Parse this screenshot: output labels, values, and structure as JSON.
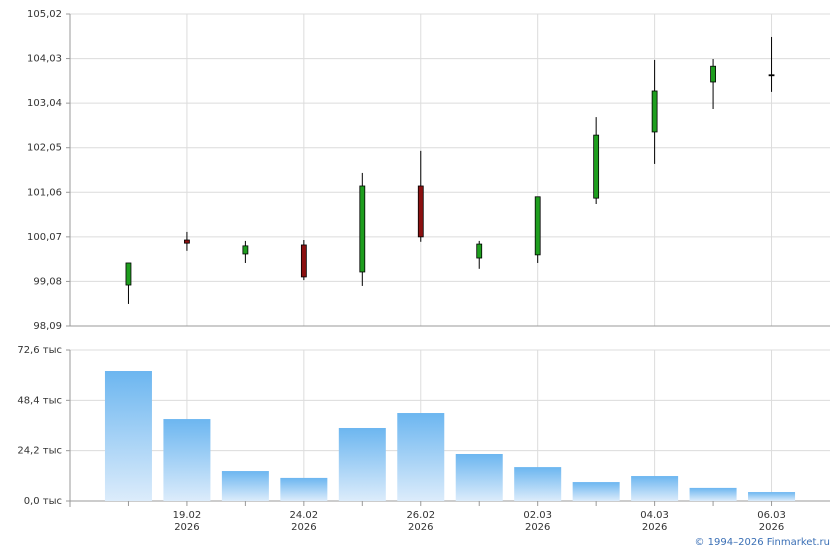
{
  "chart_data": [
    {
      "type": "candlestick",
      "open": [
        99.0,
        100.0,
        99.69,
        99.89,
        99.29,
        101.2,
        99.6,
        99.67,
        100.93,
        102.4,
        103.51,
        103.67
      ],
      "high": [
        99.49,
        100.18,
        99.98,
        100.0,
        101.49,
        101.98,
        99.98,
        100.96,
        102.73,
        104.0,
        104.02,
        104.51
      ],
      "low": [
        98.58,
        99.76,
        99.49,
        99.11,
        98.98,
        99.96,
        99.36,
        99.49,
        100.8,
        101.69,
        102.91,
        103.29
      ],
      "close": [
        99.49,
        99.93,
        99.87,
        99.18,
        101.2,
        100.07,
        99.91,
        100.96,
        102.33,
        103.31,
        103.86,
        103.67
      ],
      "up_color": "#1e9e1e",
      "down_color": "#8b1010",
      "flat_color": "#000000",
      "ylim": [
        98.09,
        105.02
      ],
      "yticks": [
        {
          "value": 98.09,
          "label": "98,09"
        },
        {
          "value": 99.08,
          "label": "99,08"
        },
        {
          "value": 100.07,
          "label": "100,07"
        },
        {
          "value": 101.06,
          "label": "101,06"
        },
        {
          "value": 102.05,
          "label": "102,05"
        },
        {
          "value": 103.04,
          "label": "103,04"
        },
        {
          "value": 104.03,
          "label": "104,03"
        },
        {
          "value": 105.02,
          "label": "105,02"
        }
      ],
      "grid": true
    },
    {
      "type": "bar",
      "categories": [
        null,
        "19.02",
        null,
        "24.02",
        null,
        "26.02",
        null,
        "02.03",
        null,
        "04.03",
        null,
        "06.03"
      ],
      "category_years": [
        null,
        "2026",
        null,
        "2026",
        null,
        "2026",
        null,
        "2026",
        null,
        "2026",
        null,
        "2026"
      ],
      "values": [
        62.5,
        39.4,
        14.4,
        11.1,
        35.1,
        42.3,
        22.6,
        16.3,
        9.1,
        12.0,
        6.3,
        4.3
      ],
      "color": "#6cb6f0",
      "ylim": [
        0,
        72.6
      ],
      "yticks": [
        {
          "value": 0,
          "label": "0,0 тыс"
        },
        {
          "value": 24.2,
          "label": "24,2 тыс"
        },
        {
          "value": 48.4,
          "label": "48,4 тыс"
        },
        {
          "value": 72.6,
          "label": "72,6 тыс"
        }
      ],
      "grid": true
    }
  ],
  "copyright": "© 1994–2026 Finmarket.ru"
}
